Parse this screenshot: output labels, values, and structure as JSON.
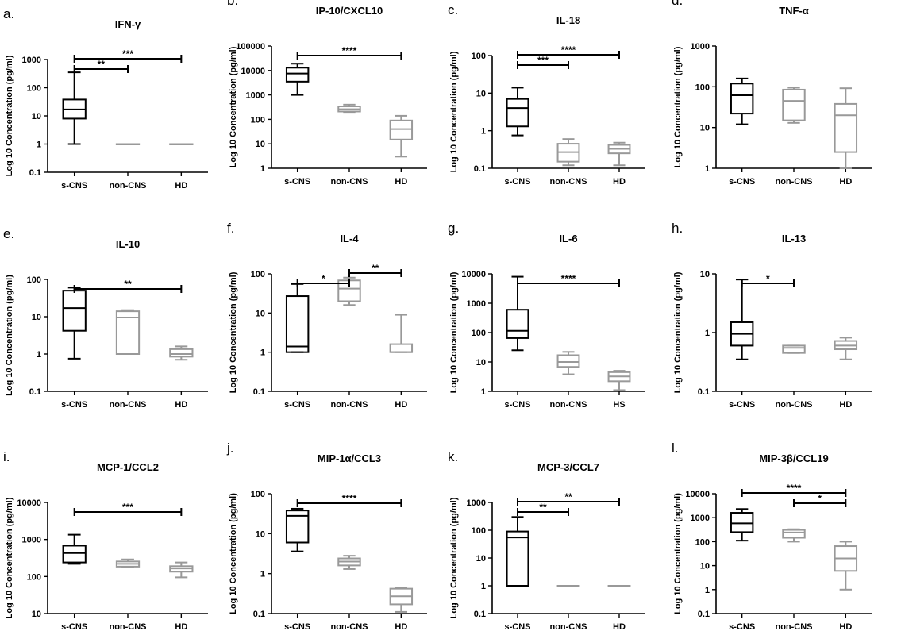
{
  "chart_data": [
    {
      "type": "box",
      "panel_label": "a.",
      "title": "IFN-γ",
      "ylabel": "Log 10 Concentration (pg/ml)",
      "yscale": "log",
      "ylim": [
        0.1,
        1000
      ],
      "yticks": [
        "0.1",
        "1",
        "10",
        "100",
        "1000"
      ],
      "categories": [
        "s-CNS",
        "non-CNS",
        "HD"
      ],
      "boxes": [
        {
          "min": 1,
          "q1": 8,
          "median": 17,
          "q3": 38,
          "max": 350,
          "color": "#000000"
        },
        {
          "min": 1,
          "q1": 1,
          "median": 1,
          "q3": 1,
          "max": 1,
          "color": "#999999"
        },
        {
          "min": 1,
          "q1": 1,
          "median": 1,
          "q3": 1,
          "max": 1,
          "color": "#999999"
        }
      ],
      "significance": [
        {
          "from": 0,
          "to": 1,
          "label": "**"
        },
        {
          "from": 0,
          "to": 2,
          "label": "***"
        }
      ]
    },
    {
      "type": "box",
      "panel_label": "b.",
      "title": "IP-10/CXCL10",
      "ylabel": "Log 10 Concentration (pg/ml)",
      "yscale": "log",
      "ylim": [
        1,
        100000
      ],
      "yticks": [
        "1",
        "10",
        "100",
        "1000",
        "10000",
        "100000"
      ],
      "categories": [
        "s-CNS",
        "non-CNS",
        "HD"
      ],
      "boxes": [
        {
          "min": 1000,
          "q1": 3500,
          "median": 7500,
          "q3": 13000,
          "max": 19000,
          "color": "#000000"
        },
        {
          "min": 200,
          "q1": 210,
          "median": 260,
          "q3": 340,
          "max": 400,
          "color": "#999999"
        },
        {
          "min": 3,
          "q1": 15,
          "median": 40,
          "q3": 90,
          "max": 140,
          "color": "#999999"
        }
      ],
      "significance": [
        {
          "from": 0,
          "to": 2,
          "label": "****"
        }
      ]
    },
    {
      "type": "box",
      "panel_label": "c.",
      "title": "IL-18",
      "ylabel": "Log 10 Concentration (pg/ml)",
      "yscale": "log",
      "ylim": [
        0.1,
        100
      ],
      "yticks": [
        "0.1",
        "1",
        "10",
        "100"
      ],
      "categories": [
        "s-CNS",
        "non-CNS",
        "HD"
      ],
      "boxes": [
        {
          "min": 0.75,
          "q1": 1.3,
          "median": 4,
          "q3": 7,
          "max": 14,
          "color": "#000000"
        },
        {
          "min": 0.12,
          "q1": 0.15,
          "median": 0.27,
          "q3": 0.45,
          "max": 0.6,
          "color": "#999999"
        },
        {
          "min": 0.12,
          "q1": 0.25,
          "median": 0.33,
          "q3": 0.42,
          "max": 0.48,
          "color": "#999999"
        }
      ],
      "significance": [
        {
          "from": 0,
          "to": 1,
          "label": "***"
        },
        {
          "from": 0,
          "to": 2,
          "label": "****"
        }
      ]
    },
    {
      "type": "box",
      "panel_label": "d.",
      "title": "TNF-α",
      "ylabel": "Log 10 Concentration (pg/ml)",
      "yscale": "log",
      "ylim": [
        1,
        1000
      ],
      "yticks": [
        "1",
        "10",
        "100",
        "1000"
      ],
      "categories": [
        "s-CNS",
        "non-CNS",
        "HD"
      ],
      "boxes": [
        {
          "min": 12,
          "q1": 22,
          "median": 62,
          "q3": 120,
          "max": 160,
          "color": "#000000"
        },
        {
          "min": 13,
          "q1": 15,
          "median": 45,
          "q3": 85,
          "max": 95,
          "color": "#999999"
        },
        {
          "min": 1,
          "q1": 2.5,
          "median": 20,
          "q3": 38,
          "max": 92,
          "color": "#999999"
        }
      ],
      "significance": []
    },
    {
      "type": "box",
      "panel_label": "e.",
      "title": "IL-10",
      "ylabel": "Log 10 Concentration (pg/ml)",
      "yscale": "log",
      "ylim": [
        0.1,
        100
      ],
      "yticks": [
        "0.1",
        "1",
        "10",
        "100"
      ],
      "categories": [
        "s-CNS",
        "non-CNS",
        "HD"
      ],
      "boxes": [
        {
          "min": 0.75,
          "q1": 4.2,
          "median": 17,
          "q3": 50,
          "max": 60,
          "color": "#000000"
        },
        {
          "min": 1,
          "q1": 1,
          "median": 9.5,
          "q3": 14,
          "max": 15,
          "color": "#999999"
        },
        {
          "min": 0.7,
          "q1": 0.85,
          "median": 1.0,
          "q3": 1.35,
          "max": 1.6,
          "color": "#999999"
        }
      ],
      "significance": [
        {
          "from": 0,
          "to": 2,
          "label": "**"
        }
      ]
    },
    {
      "type": "box",
      "panel_label": "f.",
      "title": "IL-4",
      "ylabel": "Log 10 Concentration (pg/ml)",
      "yscale": "log",
      "ylim": [
        0.1,
        100
      ],
      "yticks": [
        "0.1",
        "1",
        "10",
        "100"
      ],
      "categories": [
        "s-CNS",
        "non-CNS",
        "HD"
      ],
      "boxes": [
        {
          "min": 1,
          "q1": 1,
          "median": 1.4,
          "q3": 27,
          "max": 55,
          "color": "#000000"
        },
        {
          "min": 16,
          "q1": 20,
          "median": 42,
          "q3": 68,
          "max": 80,
          "color": "#999999"
        },
        {
          "min": 1,
          "q1": 1,
          "median": 1,
          "q3": 1.6,
          "max": 9,
          "color": "#999999"
        }
      ],
      "significance": [
        {
          "from": 0,
          "to": 1,
          "label": "*"
        },
        {
          "from": 1,
          "to": 2,
          "label": "**"
        }
      ]
    },
    {
      "type": "box",
      "panel_label": "g.",
      "title": "IL-6",
      "ylabel": "Log 10 Concentration (pg/ml)",
      "yscale": "log",
      "ylim": [
        1,
        10000
      ],
      "yticks": [
        "1",
        "10",
        "100",
        "1000",
        "10000"
      ],
      "categories": [
        "s-CNS",
        "non-CNS",
        "HS"
      ],
      "boxes": [
        {
          "min": 25,
          "q1": 65,
          "median": 115,
          "q3": 600,
          "max": 8000,
          "color": "#000000"
        },
        {
          "min": 3.8,
          "q1": 6.8,
          "median": 10,
          "q3": 17,
          "max": 22,
          "color": "#999999"
        },
        {
          "min": 1.1,
          "q1": 2.2,
          "median": 3.2,
          "q3": 4.5,
          "max": 5,
          "color": "#999999"
        }
      ],
      "significance": [
        {
          "from": 0,
          "to": 2,
          "label": "****"
        }
      ]
    },
    {
      "type": "box",
      "panel_label": "h.",
      "title": "IL-13",
      "ylabel": "Log 10 Concentration (pg/ml)",
      "yscale": "log",
      "ylim": [
        0.1,
        10
      ],
      "yticks": [
        "0.1",
        "1",
        "10"
      ],
      "categories": [
        "s-CNS",
        "non-CNS",
        "HD"
      ],
      "boxes": [
        {
          "min": 0.35,
          "q1": 0.6,
          "median": 0.95,
          "q3": 1.5,
          "max": 8,
          "color": "#000000"
        },
        {
          "min": 0.45,
          "q1": 0.45,
          "median": 0.55,
          "q3": 0.6,
          "max": 0.6,
          "color": "#999999"
        },
        {
          "min": 0.35,
          "q1": 0.52,
          "median": 0.6,
          "q3": 0.72,
          "max": 0.82,
          "color": "#999999"
        }
      ],
      "significance": [
        {
          "from": 0,
          "to": 1,
          "label": "*"
        }
      ]
    },
    {
      "type": "box",
      "panel_label": "i.",
      "title": "MCP-1/CCL2",
      "ylabel": "Log 10 Concentration (pg/ml)",
      "yscale": "log",
      "ylim": [
        10,
        10000
      ],
      "yticks": [
        "10",
        "100",
        "1000",
        "10000"
      ],
      "categories": [
        "s-CNS",
        "non-CNS",
        "HD"
      ],
      "boxes": [
        {
          "min": 220,
          "q1": 240,
          "median": 430,
          "q3": 680,
          "max": 1350,
          "color": "#000000"
        },
        {
          "min": 180,
          "q1": 185,
          "median": 220,
          "q3": 255,
          "max": 290,
          "color": "#999999"
        },
        {
          "min": 95,
          "q1": 135,
          "median": 165,
          "q3": 190,
          "max": 240,
          "color": "#999999"
        }
      ],
      "significance": [
        {
          "from": 0,
          "to": 2,
          "label": "***"
        }
      ]
    },
    {
      "type": "box",
      "panel_label": "j.",
      "title": "MIP-1α/CCL3",
      "ylabel": "Log 10 Concentration (pg/ml)",
      "yscale": "log",
      "ylim": [
        0.1,
        100
      ],
      "yticks": [
        "0.1",
        "1",
        "10",
        "100"
      ],
      "categories": [
        "s-CNS",
        "non-CNS",
        "HD"
      ],
      "boxes": [
        {
          "min": 3.6,
          "q1": 6,
          "median": 28,
          "q3": 38,
          "max": 42,
          "color": "#000000"
        },
        {
          "min": 1.3,
          "q1": 1.6,
          "median": 2,
          "q3": 2.4,
          "max": 2.8,
          "color": "#999999"
        },
        {
          "min": 0.11,
          "q1": 0.17,
          "median": 0.27,
          "q3": 0.42,
          "max": 0.45,
          "color": "#999999"
        }
      ],
      "significance": [
        {
          "from": 0,
          "to": 2,
          "label": "****"
        }
      ]
    },
    {
      "type": "box",
      "panel_label": "k.",
      "title": "MCP-3/CCL7",
      "ylabel": "Log 10 Concentration (pg/ml)",
      "yscale": "log",
      "ylim": [
        0.1,
        1000
      ],
      "yticks": [
        "0.1",
        "1",
        "10",
        "100",
        "1000"
      ],
      "categories": [
        "s-CNS",
        "non-CNS",
        "HD"
      ],
      "boxes": [
        {
          "min": 1,
          "q1": 1,
          "median": 55,
          "q3": 90,
          "max": 300,
          "color": "#000000"
        },
        {
          "min": 1,
          "q1": 1,
          "median": 1,
          "q3": 1,
          "max": 1,
          "color": "#999999"
        },
        {
          "min": 1,
          "q1": 1,
          "median": 1,
          "q3": 1,
          "max": 1,
          "color": "#999999"
        }
      ],
      "significance": [
        {
          "from": 0,
          "to": 1,
          "label": "**"
        },
        {
          "from": 0,
          "to": 2,
          "label": "**"
        }
      ]
    },
    {
      "type": "box",
      "panel_label": "l.",
      "title": "MIP-3β/CCL19",
      "ylabel": "Log 10 Concentration (pg/ml)",
      "yscale": "log",
      "ylim": [
        0.1,
        10000
      ],
      "yticks": [
        "0.1",
        "1",
        "10",
        "100",
        "1000",
        "10000"
      ],
      "categories": [
        "s-CNS",
        "non-CNS",
        "HD"
      ],
      "boxes": [
        {
          "min": 110,
          "q1": 250,
          "median": 580,
          "q3": 1600,
          "max": 2300,
          "color": "#000000"
        },
        {
          "min": 100,
          "q1": 145,
          "median": 240,
          "q3": 310,
          "max": 330,
          "color": "#999999"
        },
        {
          "min": 1,
          "q1": 6,
          "median": 20,
          "q3": 65,
          "max": 100,
          "color": "#999999"
        }
      ],
      "significance": [
        {
          "from": 0,
          "to": 2,
          "label": "****"
        },
        {
          "from": 1,
          "to": 2,
          "label": "*"
        }
      ]
    }
  ]
}
